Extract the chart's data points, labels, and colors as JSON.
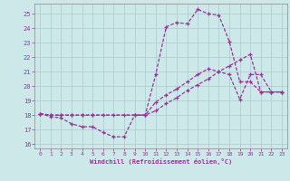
{
  "xlabel": "Windchill (Refroidissement éolien,°C)",
  "background_color": "#cce8e8",
  "grid_color": "#aacccc",
  "line_color": "#993399",
  "ylim": [
    15.7,
    25.7
  ],
  "xlim": [
    -0.5,
    23.5
  ],
  "yticks": [
    16,
    17,
    18,
    19,
    20,
    21,
    22,
    23,
    24,
    25
  ],
  "xticks": [
    0,
    1,
    2,
    3,
    4,
    5,
    6,
    7,
    8,
    9,
    10,
    11,
    12,
    13,
    14,
    15,
    16,
    17,
    18,
    19,
    20,
    21,
    22,
    23
  ],
  "curve1_x": [
    0,
    1,
    2,
    3,
    4,
    5,
    6,
    7,
    8,
    9,
    10,
    11,
    12,
    13,
    14,
    15,
    16,
    17,
    18,
    19,
    20,
    21,
    22,
    23
  ],
  "curve1_y": [
    18.1,
    17.9,
    17.8,
    17.4,
    17.2,
    17.2,
    16.8,
    16.5,
    16.5,
    18.0,
    18.0,
    20.8,
    24.1,
    24.4,
    24.3,
    25.3,
    25.0,
    24.9,
    23.1,
    20.3,
    20.3,
    19.6,
    19.6,
    19.6
  ],
  "curve2_x": [
    0,
    1,
    2,
    3,
    4,
    5,
    6,
    7,
    8,
    9,
    10,
    11,
    12,
    13,
    14,
    15,
    16,
    17,
    18,
    19,
    20,
    21,
    22,
    23
  ],
  "curve2_y": [
    18.1,
    18.0,
    18.0,
    18.0,
    18.0,
    18.0,
    18.0,
    18.0,
    18.0,
    18.0,
    18.0,
    18.3,
    18.8,
    19.2,
    19.7,
    20.1,
    20.5,
    21.0,
    21.4,
    21.8,
    22.2,
    19.6,
    19.6,
    19.6
  ],
  "curve3_x": [
    0,
    1,
    2,
    3,
    4,
    5,
    10,
    11,
    12,
    13,
    14,
    15,
    16,
    17,
    18,
    19,
    20,
    21,
    22,
    23
  ],
  "curve3_y": [
    18.1,
    18.0,
    18.0,
    18.0,
    18.0,
    18.0,
    18.0,
    18.9,
    19.4,
    19.8,
    20.3,
    20.8,
    21.2,
    21.0,
    20.8,
    19.1,
    20.8,
    20.8,
    19.6,
    19.6
  ]
}
